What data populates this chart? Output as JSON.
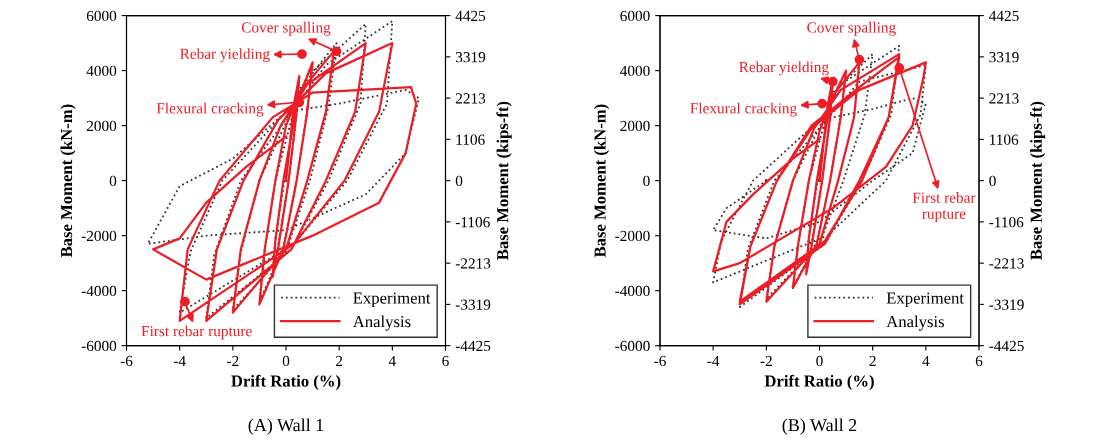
{
  "chart_data": [
    {
      "type": "line",
      "title": "(A) Wall 1",
      "xlabel": "Drift Ratio (%)",
      "ylabel": "Base Moment (kN-m)",
      "y2label": "Base Moment (kips-ft)",
      "xlim": [
        -6,
        6
      ],
      "xticks": [
        -6,
        -4,
        -2,
        0,
        2,
        4,
        6
      ],
      "ylim": [
        -6000,
        6000
      ],
      "yticks": [
        -6000,
        -4000,
        -2000,
        0,
        2000,
        4000,
        6000
      ],
      "y2lim": [
        -4425,
        4425
      ],
      "y2ticks": [
        -4425,
        -3319,
        -2213,
        -1106,
        0,
        1106,
        2213,
        3319,
        4425
      ],
      "legend": "bottom right",
      "grid": false,
      "series": [
        {
          "name": "Experiment",
          "color": "#333333",
          "line_style": "dotted",
          "x": [
            0,
            0.3,
            0.5,
            0.4,
            0.1,
            -0.3,
            -0.5,
            -0.4,
            0.4,
            1.0,
            0.8,
            0.4,
            -0.1,
            -1.0,
            -0.8,
            -0.4,
            0.5,
            1.9,
            1.6,
            0.9,
            0,
            -2.0,
            -1.7,
            -1.0,
            0.8,
            3.0,
            2.8,
            1.6,
            0.2,
            -3.0,
            -2.7,
            -1.7,
            1.5,
            4.0,
            3.8,
            2.3,
            0.3,
            -4.0,
            -3.6,
            -2.4,
            0,
            2.0,
            4.5,
            5.0,
            4.5,
            3.0,
            0,
            -3.0,
            -5.2,
            -4.0,
            -2.0,
            0
          ],
          "values": [
            0,
            2600,
            3700,
            2400,
            0,
            -2400,
            -3400,
            -2100,
            2800,
            4300,
            2600,
            0,
            -2400,
            -4400,
            -2500,
            0,
            3300,
            5000,
            2700,
            0,
            -2600,
            -4700,
            -2600,
            0,
            3800,
            5700,
            2800,
            0,
            -2500,
            -5000,
            -2700,
            0,
            4200,
            5800,
            2800,
            0,
            -2300,
            -4800,
            -2600,
            0,
            2500,
            2800,
            3300,
            3000,
            1000,
            -500,
            -1800,
            -2000,
            -2300,
            -200,
            800,
            2500
          ]
        },
        {
          "name": "Analysis",
          "color": "#ee1c25",
          "line_style": "solid",
          "x": [
            0,
            0.3,
            0.5,
            0.4,
            0.1,
            -0.3,
            -0.5,
            -0.4,
            -0.1,
            0.4,
            1.0,
            0.8,
            0.4,
            -0.1,
            -1.0,
            -0.8,
            -0.4,
            0,
            0.5,
            1.8,
            1.5,
            0.8,
            0,
            -2.0,
            -1.7,
            -1.0,
            -0.2,
            0.8,
            3.0,
            2.6,
            1.5,
            0.2,
            -3.0,
            -2.6,
            -1.6,
            -0.3,
            1.5,
            4.0,
            3.5,
            2.2,
            0.3,
            -4.0,
            -3.7,
            -2.5,
            -0.5,
            1.0,
            4.7,
            4.9,
            4.5,
            3.5,
            1.0,
            -3.0,
            -5.0,
            -4.0,
            -3.0,
            -1.5,
            0
          ],
          "values": [
            0,
            2800,
            3800,
            2500,
            0,
            -2500,
            -3500,
            -2200,
            0,
            2800,
            4300,
            2500,
            0,
            -2500,
            -4500,
            -2500,
            0,
            2000,
            3200,
            4700,
            2500,
            0,
            -2500,
            -4800,
            -2500,
            0,
            2000,
            3500,
            5000,
            2500,
            0,
            -2500,
            -5100,
            -2500,
            0,
            2200,
            3900,
            5000,
            2500,
            0,
            -2300,
            -5100,
            -2500,
            0,
            2300,
            3200,
            3400,
            2800,
            1000,
            -800,
            -2000,
            -3600,
            -2500,
            -2100,
            -800,
            500,
            1600
          ]
        }
      ],
      "annotations": [
        {
          "text": "Cover spalling",
          "x": 1.9,
          "y": 4700
        },
        {
          "text": "Rebar yielding",
          "x": 0.6,
          "y": 4600
        },
        {
          "text": "Flexural cracking",
          "x": 0.5,
          "y": 2850
        },
        {
          "text": "First rebar rupture",
          "x": -3.8,
          "y": -4400
        }
      ]
    },
    {
      "type": "line",
      "title": "(B) Wall 2",
      "xlabel": "Drift Ratio (%)",
      "ylabel": "Base Moment (kN-m)",
      "y2label": "Base Moment (kips-ft)",
      "xlim": [
        -6,
        6
      ],
      "xticks": [
        -6,
        -4,
        -2,
        0,
        2,
        4,
        6
      ],
      "ylim": [
        -6000,
        6000
      ],
      "yticks": [
        -6000,
        -4000,
        -2000,
        0,
        2000,
        4000,
        6000
      ],
      "y2lim": [
        -4425,
        4425
      ],
      "y2ticks": [
        -4425,
        -3319,
        -2213,
        -1106,
        0,
        1106,
        2213,
        3319,
        4425
      ],
      "legend": "bottom right",
      "grid": false,
      "series": [
        {
          "name": "Experiment",
          "color": "#333333",
          "line_style": "dotted",
          "x": [
            0,
            0.3,
            0.5,
            0.4,
            0.1,
            -0.3,
            -0.5,
            -0.4,
            0.4,
            1.0,
            0.8,
            0.4,
            -0.1,
            -1.0,
            -0.8,
            -0.4,
            0.5,
            2.0,
            1.7,
            0.9,
            0,
            -2.0,
            -1.7,
            -1.0,
            0.8,
            3.0,
            2.7,
            1.6,
            0.2,
            -3.0,
            -2.7,
            -1.7,
            1.5,
            4.0,
            3.8,
            2.5,
            0.3,
            -4.0,
            -3.7,
            -2.5,
            0,
            2.0,
            3.5,
            4.0,
            3.5,
            2.0,
            0,
            -2.0,
            -4.0,
            -3.5,
            -2.0
          ],
          "values": [
            0,
            2600,
            3600,
            2300,
            0,
            -2300,
            -3200,
            -2000,
            2800,
            4000,
            2400,
            0,
            -2200,
            -3900,
            -2300,
            0,
            3200,
            4600,
            2400,
            0,
            -2300,
            -4300,
            -2400,
            0,
            3500,
            4900,
            2400,
            0,
            -2300,
            -4600,
            -2500,
            0,
            3600,
            4200,
            2400,
            0,
            -2000,
            -3700,
            -2200,
            0,
            2200,
            2600,
            3000,
            2800,
            1000,
            0,
            -1500,
            -2100,
            -1800,
            -1000,
            0
          ]
        },
        {
          "name": "Analysis",
          "color": "#ee1c25",
          "line_style": "solid",
          "x": [
            0,
            0.3,
            0.5,
            0.4,
            0.1,
            -0.3,
            -0.5,
            -0.4,
            -0.1,
            0.4,
            1.0,
            0.8,
            0.4,
            -0.1,
            -1.0,
            -0.8,
            -0.4,
            0,
            0.5,
            1.5,
            1.3,
            0.7,
            0,
            -2.0,
            -1.7,
            -1.0,
            -0.2,
            0.8,
            3.0,
            2.6,
            1.5,
            0.2,
            -3.0,
            -2.6,
            -1.6,
            -0.3,
            1.5,
            3.0,
            2.6,
            1.6,
            0.2,
            -3.0,
            -2.6,
            -1.6,
            -0.3,
            1.5,
            4.0,
            3.9,
            3.5,
            2.5,
            0.5,
            -3.0,
            -4.0,
            -3.5,
            -2.5,
            -1.0,
            0
          ],
          "values": [
            0,
            2700,
            3700,
            2300,
            0,
            -2400,
            -3400,
            -2100,
            0,
            2800,
            4000,
            2300,
            0,
            -2300,
            -3900,
            -2300,
            0,
            1800,
            3100,
            4300,
            2300,
            0,
            -2300,
            -4400,
            -2400,
            0,
            1900,
            3300,
            4600,
            2300,
            0,
            -2300,
            -4500,
            -2400,
            0,
            2000,
            3400,
            4500,
            2300,
            0,
            -2200,
            -4400,
            -2400,
            0,
            1900,
            3300,
            4300,
            3700,
            2000,
            500,
            -1000,
            -3000,
            -3300,
            -1500,
            -500,
            800,
            1500
          ]
        }
      ],
      "annotations": [
        {
          "text": "Cover spalling",
          "x": 1.5,
          "y": 4400
        },
        {
          "text": "Rebar yielding",
          "x": 0.5,
          "y": 3600
        },
        {
          "text": "Flexural cracking",
          "x": 0.1,
          "y": 2800
        },
        {
          "text": "First rebar\nrupture",
          "x": 3.0,
          "y": 4100
        }
      ]
    }
  ]
}
